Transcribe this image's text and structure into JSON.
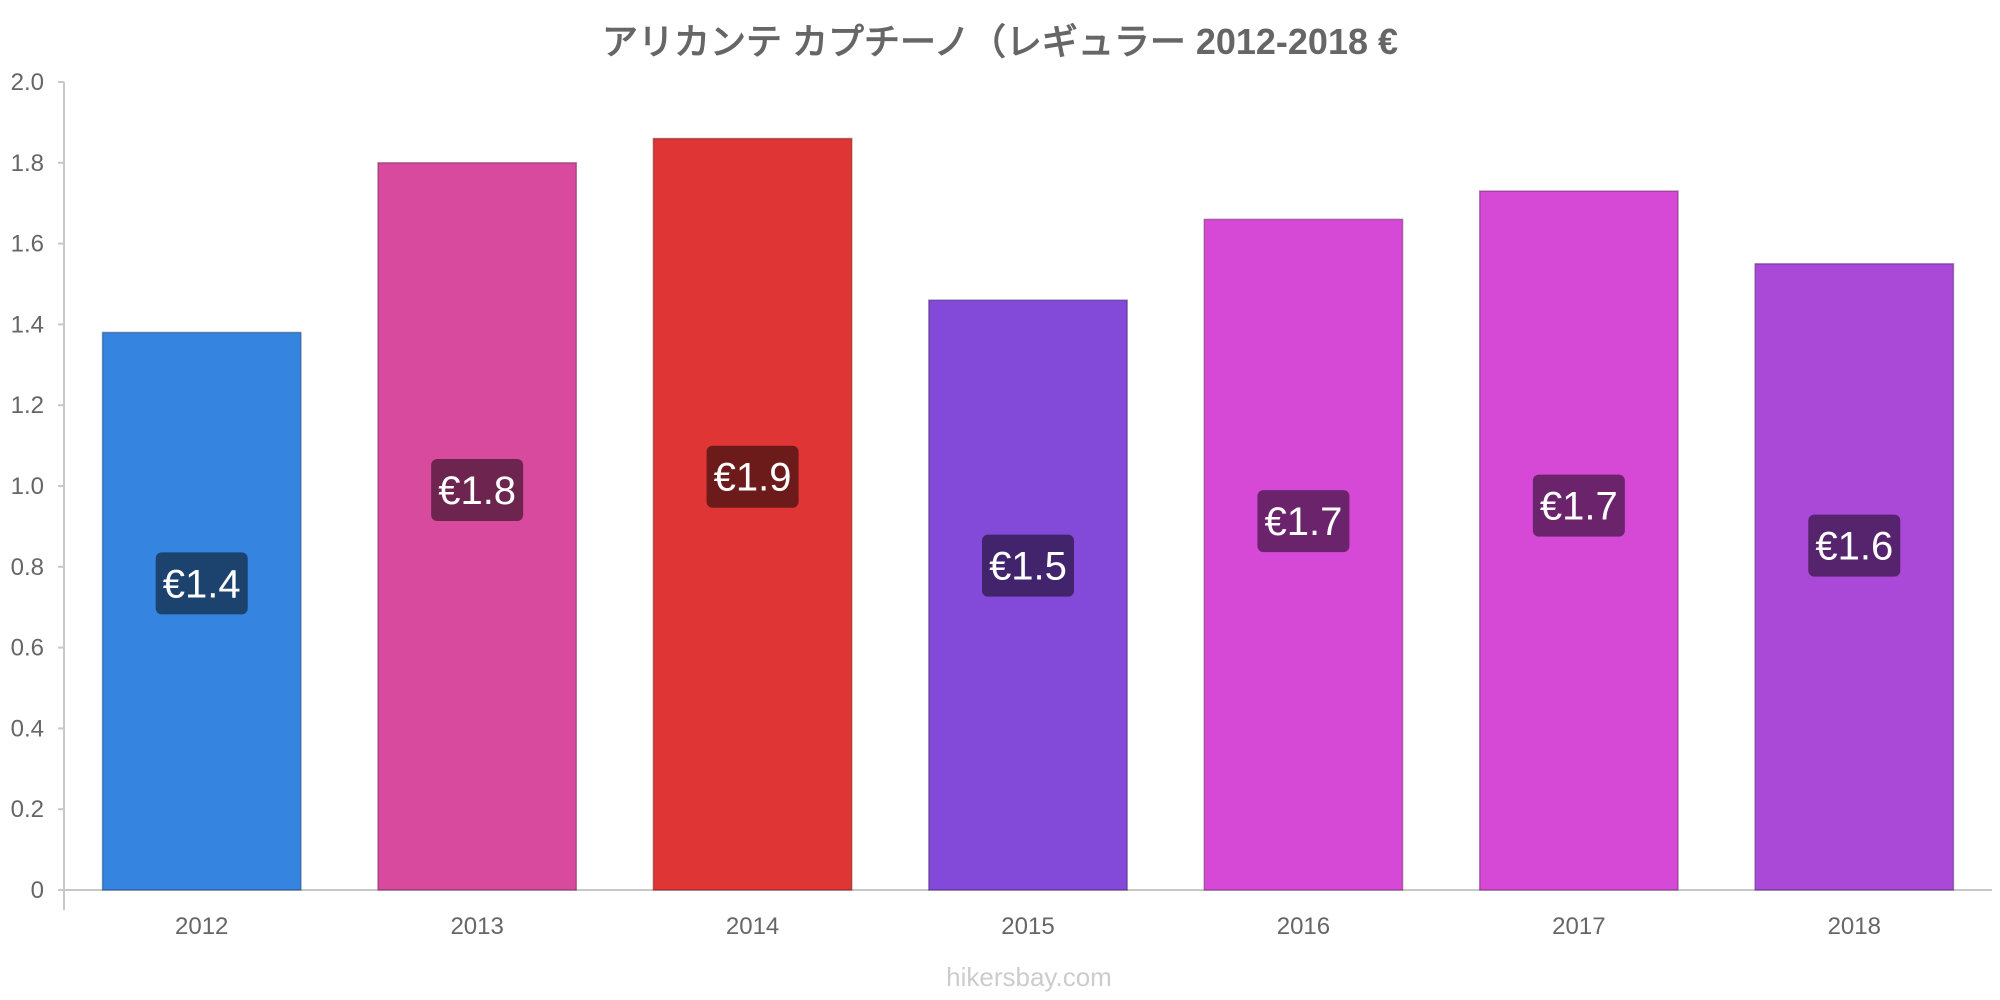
{
  "chart_data": {
    "type": "bar",
    "title": "アリカンテ カプチーノ（レギュラー 2012-2018 €",
    "categories": [
      "2012",
      "2013",
      "2014",
      "2015",
      "2016",
      "2017",
      "2018"
    ],
    "values": [
      1.38,
      1.8,
      1.86,
      1.46,
      1.66,
      1.73,
      1.55
    ],
    "value_labels": [
      "€1.4",
      "€1.8",
      "€1.9",
      "€1.5",
      "€1.7",
      "€1.7",
      "€1.6"
    ],
    "colors": [
      "#3584e0",
      "#d84a9e",
      "#e03535",
      "#8349d8",
      "#d649d6",
      "#d649d6",
      "#aa49d8"
    ],
    "label_bg_colors": [
      "#1c426e",
      "#6d254f",
      "#6d1a1a",
      "#41246c",
      "#6b246b",
      "#6b246b",
      "#55246c"
    ],
    "ylim": [
      0,
      2.0
    ],
    "yticks": [
      0,
      0.2,
      0.4,
      0.6,
      0.8,
      1.0,
      1.2,
      1.4,
      1.6,
      1.8,
      2.0
    ],
    "ytick_labels": [
      "0",
      "0.2",
      "0.4",
      "0.6",
      "0.8",
      "1.0",
      "1.2",
      "1.4",
      "1.6",
      "1.8",
      "2.0"
    ],
    "xlabel": "",
    "ylabel": "",
    "grid": false,
    "legend": "none"
  },
  "footer": {
    "source": "hikersbay.com"
  }
}
